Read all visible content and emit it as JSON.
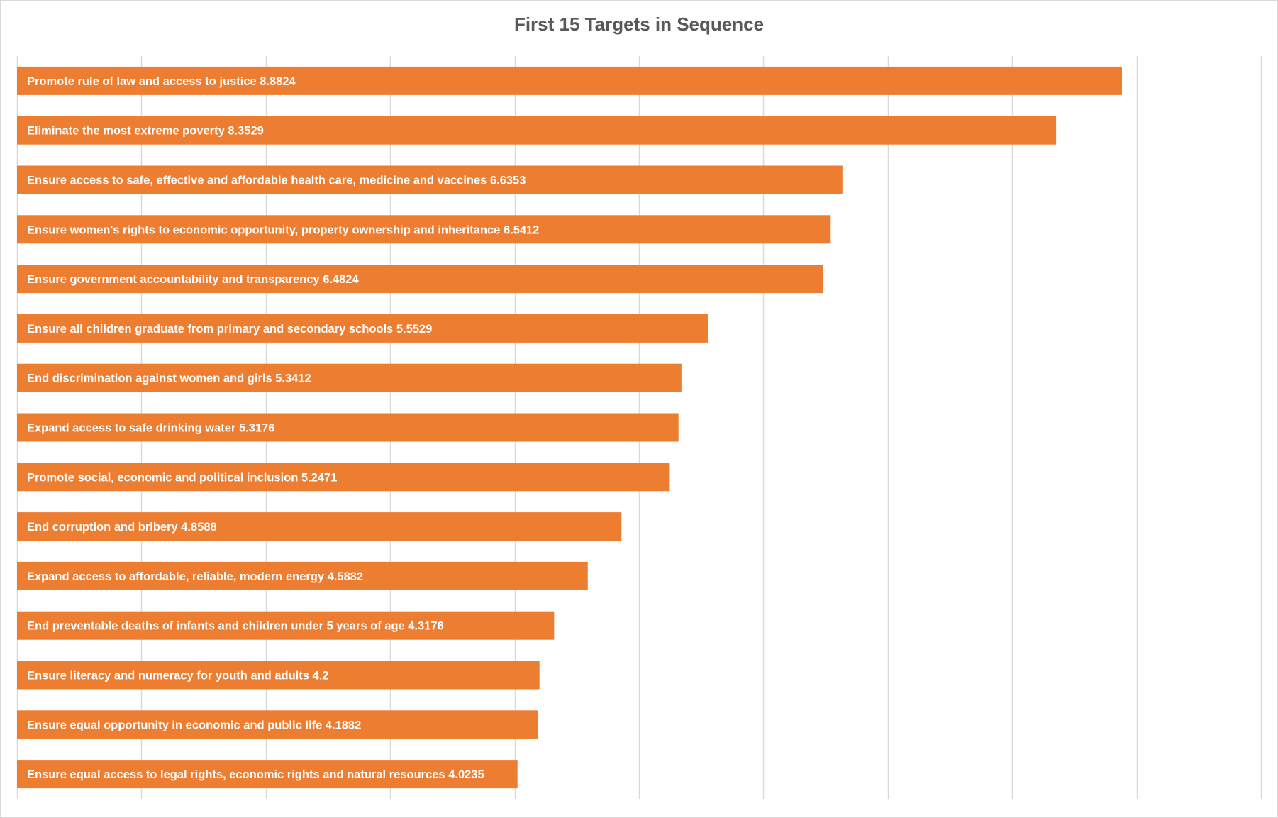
{
  "chart_data": {
    "type": "bar",
    "orientation": "horizontal",
    "title": "First 15 Targets in Sequence",
    "xlabel": "",
    "ylabel": "",
    "xlim": [
      0,
      10
    ],
    "grid": "vertical",
    "legend": "none",
    "bar_color": "#ED7D31",
    "grid_color": "#d9d9d9",
    "labels_inside_bars": true,
    "categories": [
      "Promote rule of law and access to justice",
      "Eliminate the most extreme poverty",
      "Ensure access to safe, effective and affordable health care, medicine and vaccines",
      "Ensure women's rights to economic opportunity, property ownership and inheritance",
      "Ensure government accountability and transparency",
      "Ensure all children graduate from primary and secondary schools",
      "End discrimination against women and girls",
      "Expand access to safe drinking water",
      "Promote social, economic and political inclusion",
      "End corruption and bribery",
      "Expand access to affordable, reliable, modern energy",
      "End preventable deaths of infants and children under 5 years of age",
      "Ensure literacy and numeracy for youth and adults",
      "Ensure equal opportunity in economic and public life",
      "Ensure equal access to legal rights, economic rights and natural resources"
    ],
    "values": [
      8.8824,
      8.3529,
      6.6353,
      6.5412,
      6.4824,
      5.5529,
      5.3412,
      5.3176,
      5.2471,
      4.8588,
      4.5882,
      4.3176,
      4.2,
      4.1882,
      4.0235
    ]
  }
}
